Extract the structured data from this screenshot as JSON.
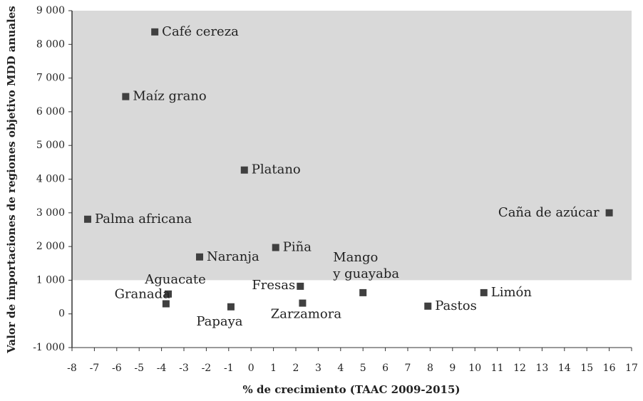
{
  "chart_data": {
    "type": "scatter",
    "x_label": "% de crecimiento (TAAC 2009-2015)",
    "y_label": "Valor de importaciones de regiones objetivo MDD anuales",
    "series": [
      {
        "color": "#404040",
        "labels": [
          [
            "Café cereza"
          ],
          [
            "Maíz grano"
          ],
          [
            "Platano"
          ],
          [
            "Palma africana"
          ],
          [
            "Caña de azúcar"
          ],
          [
            "Naranja"
          ],
          [
            "Piña"
          ],
          [
            "Aguacate"
          ],
          [
            "Granada"
          ],
          [
            "Papaya"
          ],
          [
            "Fresas"
          ],
          [
            "Zarzamora"
          ],
          [
            "Mango",
            "y guayaba"
          ],
          [
            "Pastos"
          ],
          [
            "Limón"
          ]
        ],
        "x": [
          -4.3,
          -5.6,
          -0.3,
          -7.3,
          16.0,
          -2.3,
          1.1,
          -3.7,
          -3.8,
          -0.9,
          2.2,
          2.3,
          5.0,
          7.9,
          10.4
        ],
        "values": [
          8370,
          6450,
          4270,
          2810,
          3000,
          1690,
          1970,
          590,
          300,
          210,
          820,
          320,
          630,
          230,
          630
        ]
      }
    ],
    "shaded_region": {
      "y": [
        1000,
        9000
      ],
      "color": "#d9d9d9"
    },
    "xlim": [
      -8,
      17
    ],
    "xticks": [
      -8,
      -7,
      -6,
      -5,
      -4,
      -3,
      -2,
      -1,
      0,
      1,
      2,
      3,
      4,
      5,
      6,
      7,
      8,
      9,
      10,
      11,
      12,
      13,
      14,
      15,
      16,
      17
    ],
    "ylim": [
      -1000,
      9000
    ],
    "yticks": [
      {
        "value": -1000,
        "label": "-1 000"
      },
      0,
      {
        "value": 1000,
        "label": "1 000"
      },
      {
        "value": 2000,
        "label": "2 000"
      },
      {
        "value": 3000,
        "label": "3 000"
      },
      {
        "value": 4000,
        "label": "4 000"
      },
      {
        "value": 5000,
        "label": "5 000"
      },
      {
        "value": 6000,
        "label": "6 000"
      },
      {
        "value": 7000,
        "label": "7 000"
      },
      {
        "value": 8000,
        "label": "8 000"
      },
      {
        "value": 9000,
        "label": "9 000"
      }
    ]
  }
}
